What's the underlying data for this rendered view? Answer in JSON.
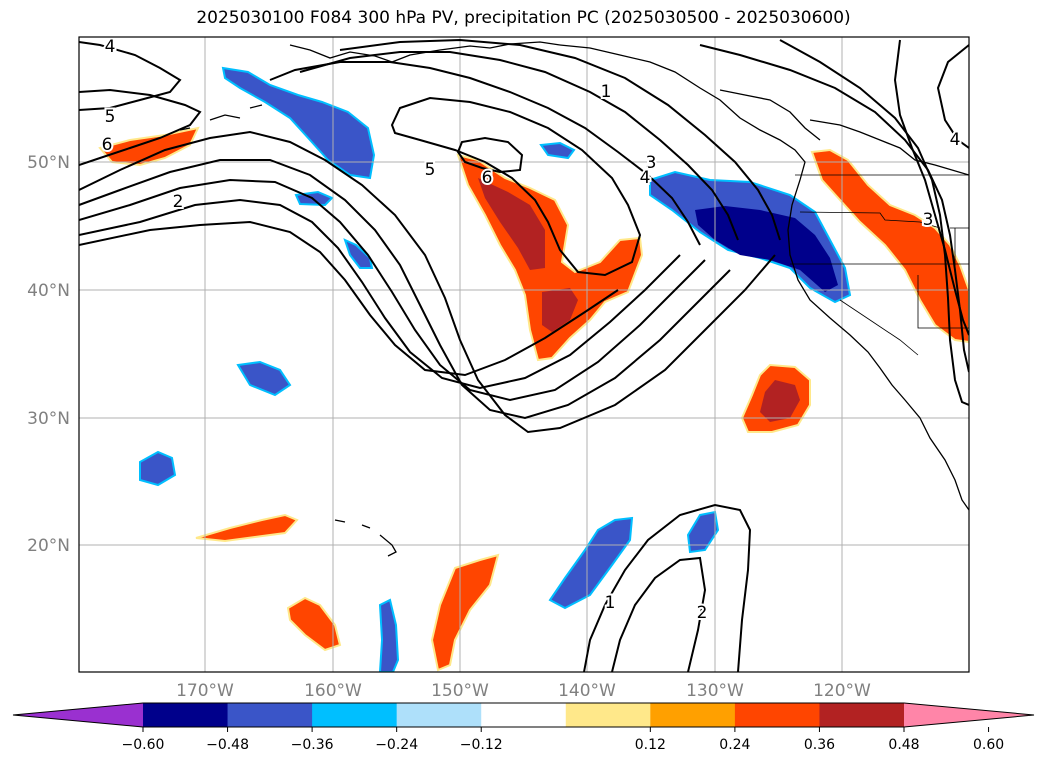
{
  "title": "2025030100 F084 300 hPa PV, precipitation PC (2025030500 - 2025030600)",
  "lat_labels": [
    "50°N",
    "40°N",
    "30°N",
    "20°N"
  ],
  "lon_labels": [
    "170°W",
    "160°W",
    "150°W",
    "140°W",
    "130°W",
    "120°W"
  ],
  "contour_labels": [
    "4",
    "5",
    "6",
    "2",
    "5",
    "6",
    "1",
    "3",
    "4",
    "4",
    "3",
    "1",
    "2"
  ],
  "colorbar": {
    "colors": [
      "#9a30d0",
      "#00008b",
      "#3a55c8",
      "#00bfff",
      "#aee0fa",
      "#ffffff",
      "#ffe88a",
      "#ffa000",
      "#ff4500",
      "#b22222",
      "#ff85a8"
    ],
    "tick_labels": [
      "−0.60",
      "−0.48",
      "−0.36",
      "−0.24",
      "−0.12",
      "0.12",
      "0.24",
      "0.36",
      "0.48",
      "0.60"
    ]
  }
}
